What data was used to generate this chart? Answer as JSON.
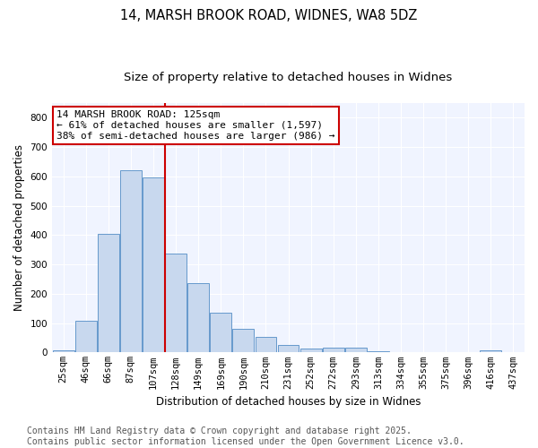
{
  "title_line1": "14, MARSH BROOK ROAD, WIDNES, WA8 5DZ",
  "title_line2": "Size of property relative to detached houses in Widnes",
  "xlabel": "Distribution of detached houses by size in Widnes",
  "ylabel": "Number of detached properties",
  "bar_labels": [
    "25sqm",
    "46sqm",
    "66sqm",
    "87sqm",
    "107sqm",
    "128sqm",
    "149sqm",
    "169sqm",
    "190sqm",
    "210sqm",
    "231sqm",
    "252sqm",
    "272sqm",
    "293sqm",
    "313sqm",
    "334sqm",
    "355sqm",
    "375sqm",
    "396sqm",
    "416sqm",
    "437sqm"
  ],
  "bar_values": [
    8,
    108,
    405,
    620,
    597,
    337,
    237,
    135,
    80,
    52,
    26,
    12,
    15,
    17,
    4,
    0,
    0,
    0,
    0,
    8,
    0
  ],
  "bar_color": "#c8d8ee",
  "bar_edge_color": "#6699cc",
  "vline_color": "#cc0000",
  "vline_index": 5,
  "annotation_title": "14 MARSH BROOK ROAD: 125sqm",
  "annotation_line2": "← 61% of detached houses are smaller (1,597)",
  "annotation_line3": "38% of semi-detached houses are larger (986) →",
  "annotation_box_color": "#cc0000",
  "annotation_bg": "#ffffff",
  "ylim": [
    0,
    850
  ],
  "yticks": [
    0,
    100,
    200,
    300,
    400,
    500,
    600,
    700,
    800
  ],
  "fig_bg_color": "#ffffff",
  "plot_bg_color": "#f0f4ff",
  "grid_color": "#ffffff",
  "footnote_line1": "Contains HM Land Registry data © Crown copyright and database right 2025.",
  "footnote_line2": "Contains public sector information licensed under the Open Government Licence v3.0.",
  "title_fontsize": 10.5,
  "subtitle_fontsize": 9.5,
  "axis_label_fontsize": 8.5,
  "tick_fontsize": 7.5,
  "footnote_fontsize": 7.0,
  "annotation_fontsize": 8.0
}
